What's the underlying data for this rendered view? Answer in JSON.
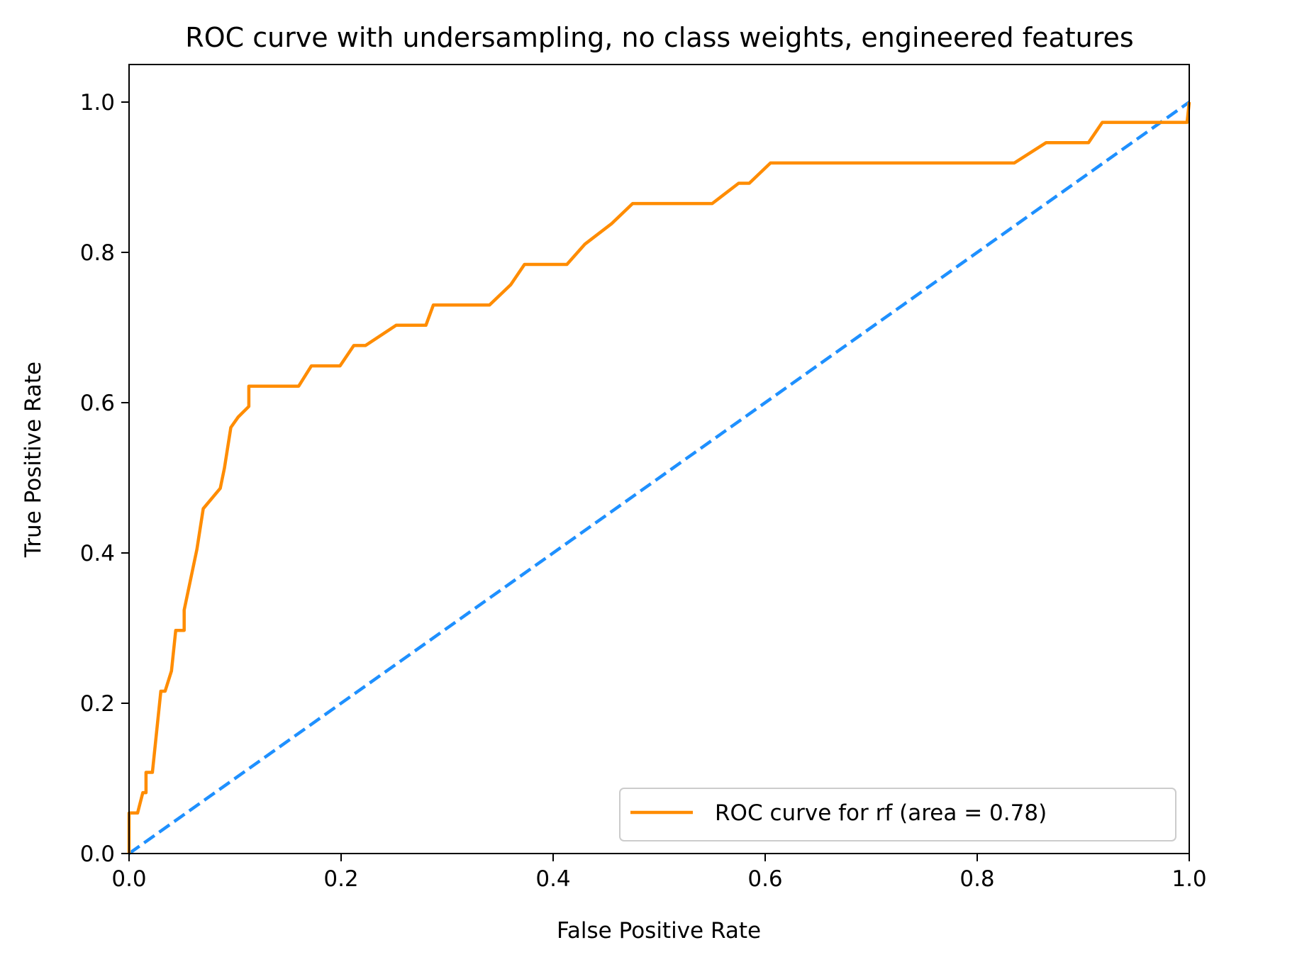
{
  "chart_data": {
    "type": "line",
    "title": "ROC curve with undersampling, no class weights, engineered features",
    "xlabel": "False Positive Rate",
    "ylabel": "True Positive Rate",
    "xlim": [
      0.0,
      1.0
    ],
    "ylim": [
      0.0,
      1.05
    ],
    "x_ticks": [
      "0.0",
      "0.2",
      "0.4",
      "0.6",
      "0.8",
      "1.0"
    ],
    "y_ticks": [
      "0.0",
      "0.2",
      "0.4",
      "0.6",
      "0.8",
      "1.0"
    ],
    "grid": false,
    "legend_position": "lower right",
    "series": [
      {
        "name": "ROC curve for rf (area = 0.78)",
        "color": "#ff8c00",
        "style": "solid",
        "x": [
          0.0,
          0.0,
          0.008,
          0.013,
          0.016,
          0.016,
          0.022,
          0.03,
          0.034,
          0.04,
          0.044,
          0.05,
          0.052,
          0.052,
          0.064,
          0.07,
          0.07,
          0.086,
          0.09,
          0.096,
          0.103,
          0.113,
          0.113,
          0.16,
          0.172,
          0.199,
          0.212,
          0.223,
          0.252,
          0.28,
          0.287,
          0.34,
          0.36,
          0.373,
          0.413,
          0.43,
          0.455,
          0.475,
          0.55,
          0.575,
          0.585,
          0.605,
          0.835,
          0.865,
          0.905,
          0.918,
          0.993,
          0.998,
          1.0
        ],
        "y": [
          0.0,
          0.054,
          0.054,
          0.081,
          0.081,
          0.108,
          0.108,
          0.216,
          0.216,
          0.243,
          0.297,
          0.297,
          0.297,
          0.324,
          0.405,
          0.459,
          0.459,
          0.486,
          0.513,
          0.567,
          0.581,
          0.595,
          0.622,
          0.622,
          0.649,
          0.649,
          0.676,
          0.676,
          0.703,
          0.703,
          0.73,
          0.73,
          0.757,
          0.784,
          0.784,
          0.811,
          0.838,
          0.865,
          0.865,
          0.892,
          0.892,
          0.919,
          0.919,
          0.946,
          0.946,
          0.973,
          0.973,
          0.973,
          1.0
        ]
      },
      {
        "name": "",
        "color": "#1e90ff",
        "style": "dashed",
        "x": [
          0.0,
          1.0
        ],
        "y": [
          0.0,
          1.0
        ]
      }
    ]
  }
}
